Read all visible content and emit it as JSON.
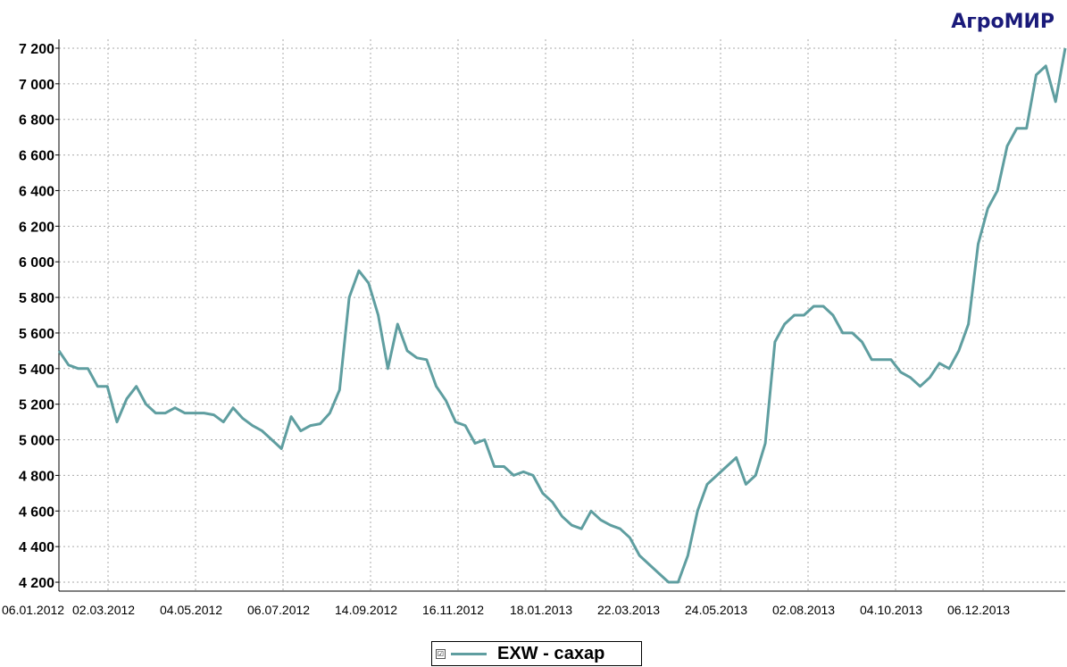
{
  "brand": "АгроМИР",
  "legend": {
    "checkbox": "☑",
    "label": "EXW - сахар"
  },
  "colors": {
    "line": "#5f9ea0",
    "grid": "#aaaaaa",
    "brand": "#1a1a7a"
  },
  "chart_data": {
    "type": "line",
    "title": "",
    "xlabel": "",
    "ylabel": "",
    "ylim": [
      4150,
      7250
    ],
    "grid": true,
    "legend_position": "bottom-center",
    "yticks": [
      4200,
      4400,
      4600,
      4800,
      5000,
      5200,
      5400,
      5600,
      5800,
      6000,
      6200,
      6400,
      6600,
      6800,
      7000,
      7200
    ],
    "ytick_labels": [
      "4 200",
      "4 400",
      "4 600",
      "4 800",
      "5 000",
      "5 200",
      "5 400",
      "5 600",
      "5 800",
      "6 000",
      "6 200",
      "6 400",
      "6 600",
      "6 800",
      "7 000",
      "7 200"
    ],
    "xtick_labels": [
      "06.01.2012",
      "02.03.2012",
      "04.05.2012",
      "06.07.2012",
      "14.09.2012",
      "16.11.2012",
      "18.01.2013",
      "22.03.2013",
      "24.05.2013",
      "02.08.2013",
      "04.10.2013",
      "06.12.2013"
    ],
    "series": [
      {
        "name": "EXW - сахар",
        "values": [
          5500,
          5420,
          5400,
          5400,
          5300,
          5300,
          5100,
          5230,
          5300,
          5200,
          5150,
          5150,
          5180,
          5150,
          5150,
          5150,
          5140,
          5100,
          5180,
          5120,
          5080,
          5050,
          5000,
          4950,
          5130,
          5050,
          5080,
          5090,
          5150,
          5280,
          5800,
          5950,
          5880,
          5700,
          5400,
          5650,
          5500,
          5460,
          5450,
          5300,
          5220,
          5100,
          5080,
          4980,
          5000,
          4850,
          4850,
          4800,
          4820,
          4800,
          4700,
          4650,
          4570,
          4520,
          4500,
          4600,
          4550,
          4520,
          4500,
          4450,
          4350,
          4300,
          4250,
          4200,
          4200,
          4350,
          4600,
          4750,
          4800,
          4850,
          4900,
          4750,
          4800,
          4980,
          5550,
          5650,
          5700,
          5700,
          5750,
          5750,
          5700,
          5600,
          5600,
          5550,
          5450,
          5450,
          5450,
          5380,
          5350,
          5300,
          5350,
          5430,
          5400,
          5500,
          5650,
          6100,
          6300,
          6400,
          6650,
          6750,
          6750,
          7050,
          7100,
          6900,
          7200
        ]
      }
    ]
  }
}
